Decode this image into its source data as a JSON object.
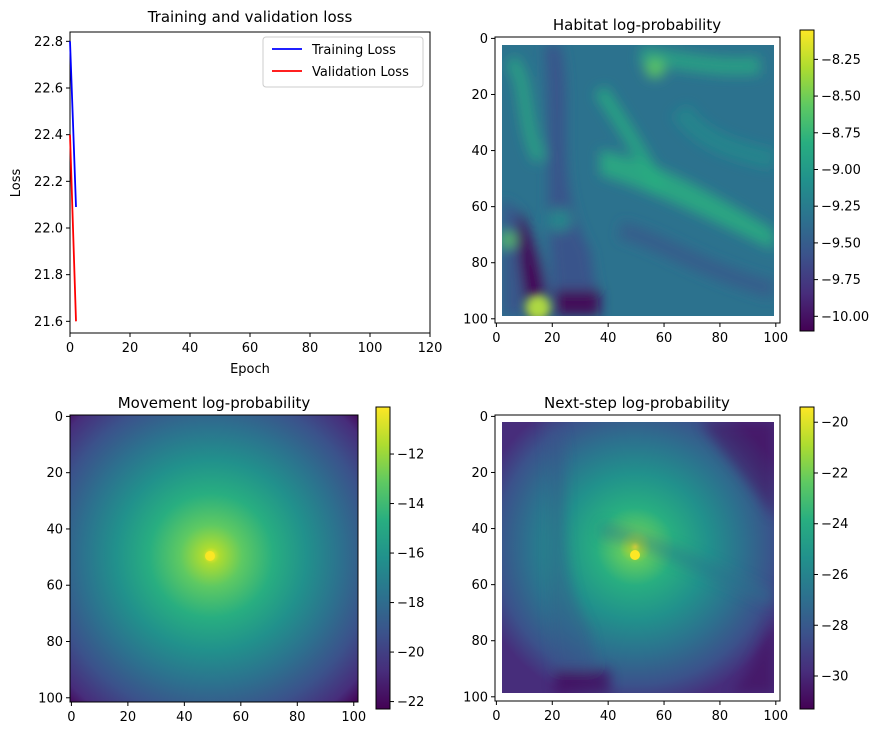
{
  "chart_data": [
    {
      "type": "line",
      "title": "Training and validation loss",
      "xlabel": "Epoch",
      "ylabel": "Loss",
      "xlim": [
        0,
        120
      ],
      "ylim": [
        21.55,
        22.84
      ],
      "xticks": [
        "0",
        "20",
        "40",
        "60",
        "80",
        "100",
        "120"
      ],
      "yticks": [
        "21.6",
        "21.8",
        "22.0",
        "22.2",
        "22.4",
        "22.6",
        "22.8"
      ],
      "legend_position": "top-right",
      "grid": false,
      "series": [
        {
          "name": "Training Loss",
          "color": "#0000ff",
          "x": [
            0,
            1,
            2
          ],
          "y": [
            22.8,
            22.45,
            22.09
          ]
        },
        {
          "name": "Validation Loss",
          "color": "#ff0000",
          "x": [
            0,
            1,
            2
          ],
          "y": [
            22.4,
            22.0,
            21.6
          ]
        }
      ]
    },
    {
      "type": "heatmap",
      "title": "Habitat log-probability",
      "colormap": "viridis",
      "xticks": [
        "0",
        "20",
        "40",
        "60",
        "80",
        "100"
      ],
      "yticks": [
        "0",
        "20",
        "40",
        "60",
        "80",
        "100"
      ],
      "colorbar_range": [
        -10.1,
        -8.05
      ],
      "colorbar_ticks": [
        "−8.25",
        "−8.50",
        "−8.75",
        "−9.00",
        "−9.25",
        "−9.50",
        "−9.75",
        "−10.00"
      ]
    },
    {
      "type": "heatmap",
      "title": "Movement log-probability",
      "colormap": "viridis",
      "xticks": [
        "0",
        "20",
        "40",
        "60",
        "80",
        "100"
      ],
      "yticks": [
        "0",
        "20",
        "40",
        "60",
        "80",
        "100"
      ],
      "colorbar_range": [
        -22.3,
        -10.1
      ],
      "colorbar_ticks": [
        "−12",
        "−14",
        "−16",
        "−18",
        "−20",
        "−22"
      ]
    },
    {
      "type": "heatmap",
      "title": "Next-step log-probability",
      "colormap": "viridis",
      "xticks": [
        "0",
        "20",
        "40",
        "60",
        "80",
        "100"
      ],
      "yticks": [
        "0",
        "20",
        "40",
        "60",
        "80",
        "100"
      ],
      "colorbar_range": [
        -31.3,
        -19.4
      ],
      "colorbar_ticks": [
        "−20",
        "−22",
        "−24",
        "−26",
        "−28",
        "−30"
      ]
    }
  ]
}
